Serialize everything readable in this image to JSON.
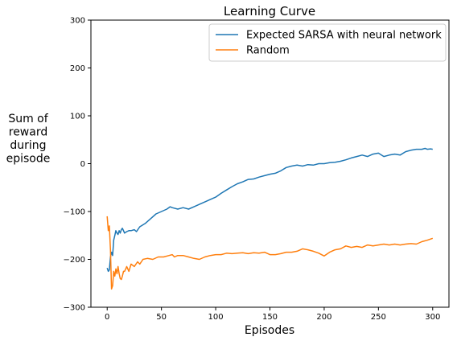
{
  "chart_data": {
    "type": "line",
    "title": "Learning Curve",
    "xlabel": "Episodes",
    "ylabel": [
      "Sum of",
      "reward",
      "during",
      "episode"
    ],
    "xlim": [
      -15,
      315
    ],
    "ylim": [
      -300,
      300
    ],
    "xticks": [
      0,
      50,
      100,
      150,
      200,
      250,
      300
    ],
    "yticks": [
      -300,
      -200,
      -100,
      0,
      100,
      200,
      300
    ],
    "xtick_labels": [
      "0",
      "50",
      "100",
      "150",
      "200",
      "250",
      "300"
    ],
    "ytick_labels": [
      "−300",
      "−200",
      "−100",
      "0",
      "100",
      "200",
      "300"
    ],
    "grid": false,
    "legend_position": "upper-right",
    "series": [
      {
        "name": "Expected SARSA with neural network",
        "color": "#1f77b4",
        "points": [
          [
            0,
            -218
          ],
          [
            1,
            -225
          ],
          [
            2,
            -222
          ],
          [
            3,
            -195
          ],
          [
            4,
            -185
          ],
          [
            5,
            -192
          ],
          [
            6,
            -160
          ],
          [
            7,
            -150
          ],
          [
            8,
            -140
          ],
          [
            9,
            -145
          ],
          [
            10,
            -148
          ],
          [
            11,
            -140
          ],
          [
            12,
            -145
          ],
          [
            13,
            -138
          ],
          [
            14,
            -135
          ],
          [
            15,
            -140
          ],
          [
            16,
            -145
          ],
          [
            18,
            -142
          ],
          [
            20,
            -140
          ],
          [
            22,
            -140
          ],
          [
            25,
            -138
          ],
          [
            27,
            -142
          ],
          [
            30,
            -132
          ],
          [
            35,
            -125
          ],
          [
            40,
            -115
          ],
          [
            45,
            -105
          ],
          [
            50,
            -100
          ],
          [
            55,
            -95
          ],
          [
            58,
            -90
          ],
          [
            60,
            -92
          ],
          [
            65,
            -95
          ],
          [
            70,
            -92
          ],
          [
            75,
            -95
          ],
          [
            80,
            -90
          ],
          [
            85,
            -85
          ],
          [
            90,
            -80
          ],
          [
            95,
            -75
          ],
          [
            100,
            -70
          ],
          [
            105,
            -62
          ],
          [
            110,
            -55
          ],
          [
            115,
            -48
          ],
          [
            120,
            -42
          ],
          [
            125,
            -38
          ],
          [
            130,
            -33
          ],
          [
            135,
            -32
          ],
          [
            140,
            -28
          ],
          [
            145,
            -25
          ],
          [
            150,
            -22
          ],
          [
            155,
            -20
          ],
          [
            160,
            -15
          ],
          [
            165,
            -8
          ],
          [
            170,
            -5
          ],
          [
            175,
            -3
          ],
          [
            180,
            -5
          ],
          [
            185,
            -2
          ],
          [
            190,
            -3
          ],
          [
            195,
            0
          ],
          [
            200,
            0
          ],
          [
            205,
            2
          ],
          [
            210,
            3
          ],
          [
            215,
            5
          ],
          [
            220,
            8
          ],
          [
            225,
            12
          ],
          [
            230,
            15
          ],
          [
            235,
            18
          ],
          [
            240,
            15
          ],
          [
            245,
            20
          ],
          [
            250,
            22
          ],
          [
            255,
            15
          ],
          [
            260,
            18
          ],
          [
            265,
            20
          ],
          [
            270,
            18
          ],
          [
            275,
            25
          ],
          [
            280,
            28
          ],
          [
            285,
            30
          ],
          [
            290,
            30
          ],
          [
            293,
            32
          ],
          [
            295,
            30
          ],
          [
            298,
            31
          ],
          [
            300,
            30
          ]
        ]
      },
      {
        "name": "Random",
        "color": "#ff7f0e",
        "points": [
          [
            0,
            -110
          ],
          [
            1,
            -140
          ],
          [
            2,
            -130
          ],
          [
            3,
            -180
          ],
          [
            4,
            -262
          ],
          [
            5,
            -255
          ],
          [
            6,
            -225
          ],
          [
            7,
            -235
          ],
          [
            8,
            -220
          ],
          [
            9,
            -230
          ],
          [
            10,
            -215
          ],
          [
            11,
            -230
          ],
          [
            12,
            -240
          ],
          [
            13,
            -242
          ],
          [
            14,
            -235
          ],
          [
            15,
            -225
          ],
          [
            16,
            -225
          ],
          [
            17,
            -220
          ],
          [
            18,
            -215
          ],
          [
            20,
            -225
          ],
          [
            22,
            -210
          ],
          [
            25,
            -215
          ],
          [
            28,
            -205
          ],
          [
            30,
            -210
          ],
          [
            33,
            -200
          ],
          [
            37,
            -198
          ],
          [
            42,
            -200
          ],
          [
            47,
            -195
          ],
          [
            52,
            -195
          ],
          [
            57,
            -192
          ],
          [
            60,
            -190
          ],
          [
            62,
            -195
          ],
          [
            65,
            -192
          ],
          [
            70,
            -192
          ],
          [
            75,
            -195
          ],
          [
            80,
            -198
          ],
          [
            85,
            -200
          ],
          [
            90,
            -195
          ],
          [
            95,
            -192
          ],
          [
            100,
            -190
          ],
          [
            105,
            -190
          ],
          [
            110,
            -187
          ],
          [
            115,
            -188
          ],
          [
            120,
            -187
          ],
          [
            125,
            -186
          ],
          [
            130,
            -188
          ],
          [
            135,
            -186
          ],
          [
            140,
            -187
          ],
          [
            145,
            -185
          ],
          [
            150,
            -190
          ],
          [
            155,
            -190
          ],
          [
            160,
            -188
          ],
          [
            165,
            -185
          ],
          [
            170,
            -185
          ],
          [
            175,
            -183
          ],
          [
            180,
            -178
          ],
          [
            185,
            -180
          ],
          [
            190,
            -183
          ],
          [
            195,
            -187
          ],
          [
            200,
            -193
          ],
          [
            205,
            -185
          ],
          [
            210,
            -180
          ],
          [
            215,
            -178
          ],
          [
            220,
            -172
          ],
          [
            225,
            -175
          ],
          [
            230,
            -173
          ],
          [
            235,
            -175
          ],
          [
            240,
            -170
          ],
          [
            245,
            -172
          ],
          [
            250,
            -170
          ],
          [
            255,
            -168
          ],
          [
            260,
            -170
          ],
          [
            265,
            -168
          ],
          [
            270,
            -170
          ],
          [
            275,
            -168
          ],
          [
            280,
            -167
          ],
          [
            285,
            -168
          ],
          [
            290,
            -163
          ],
          [
            295,
            -160
          ],
          [
            300,
            -156
          ]
        ]
      }
    ]
  }
}
